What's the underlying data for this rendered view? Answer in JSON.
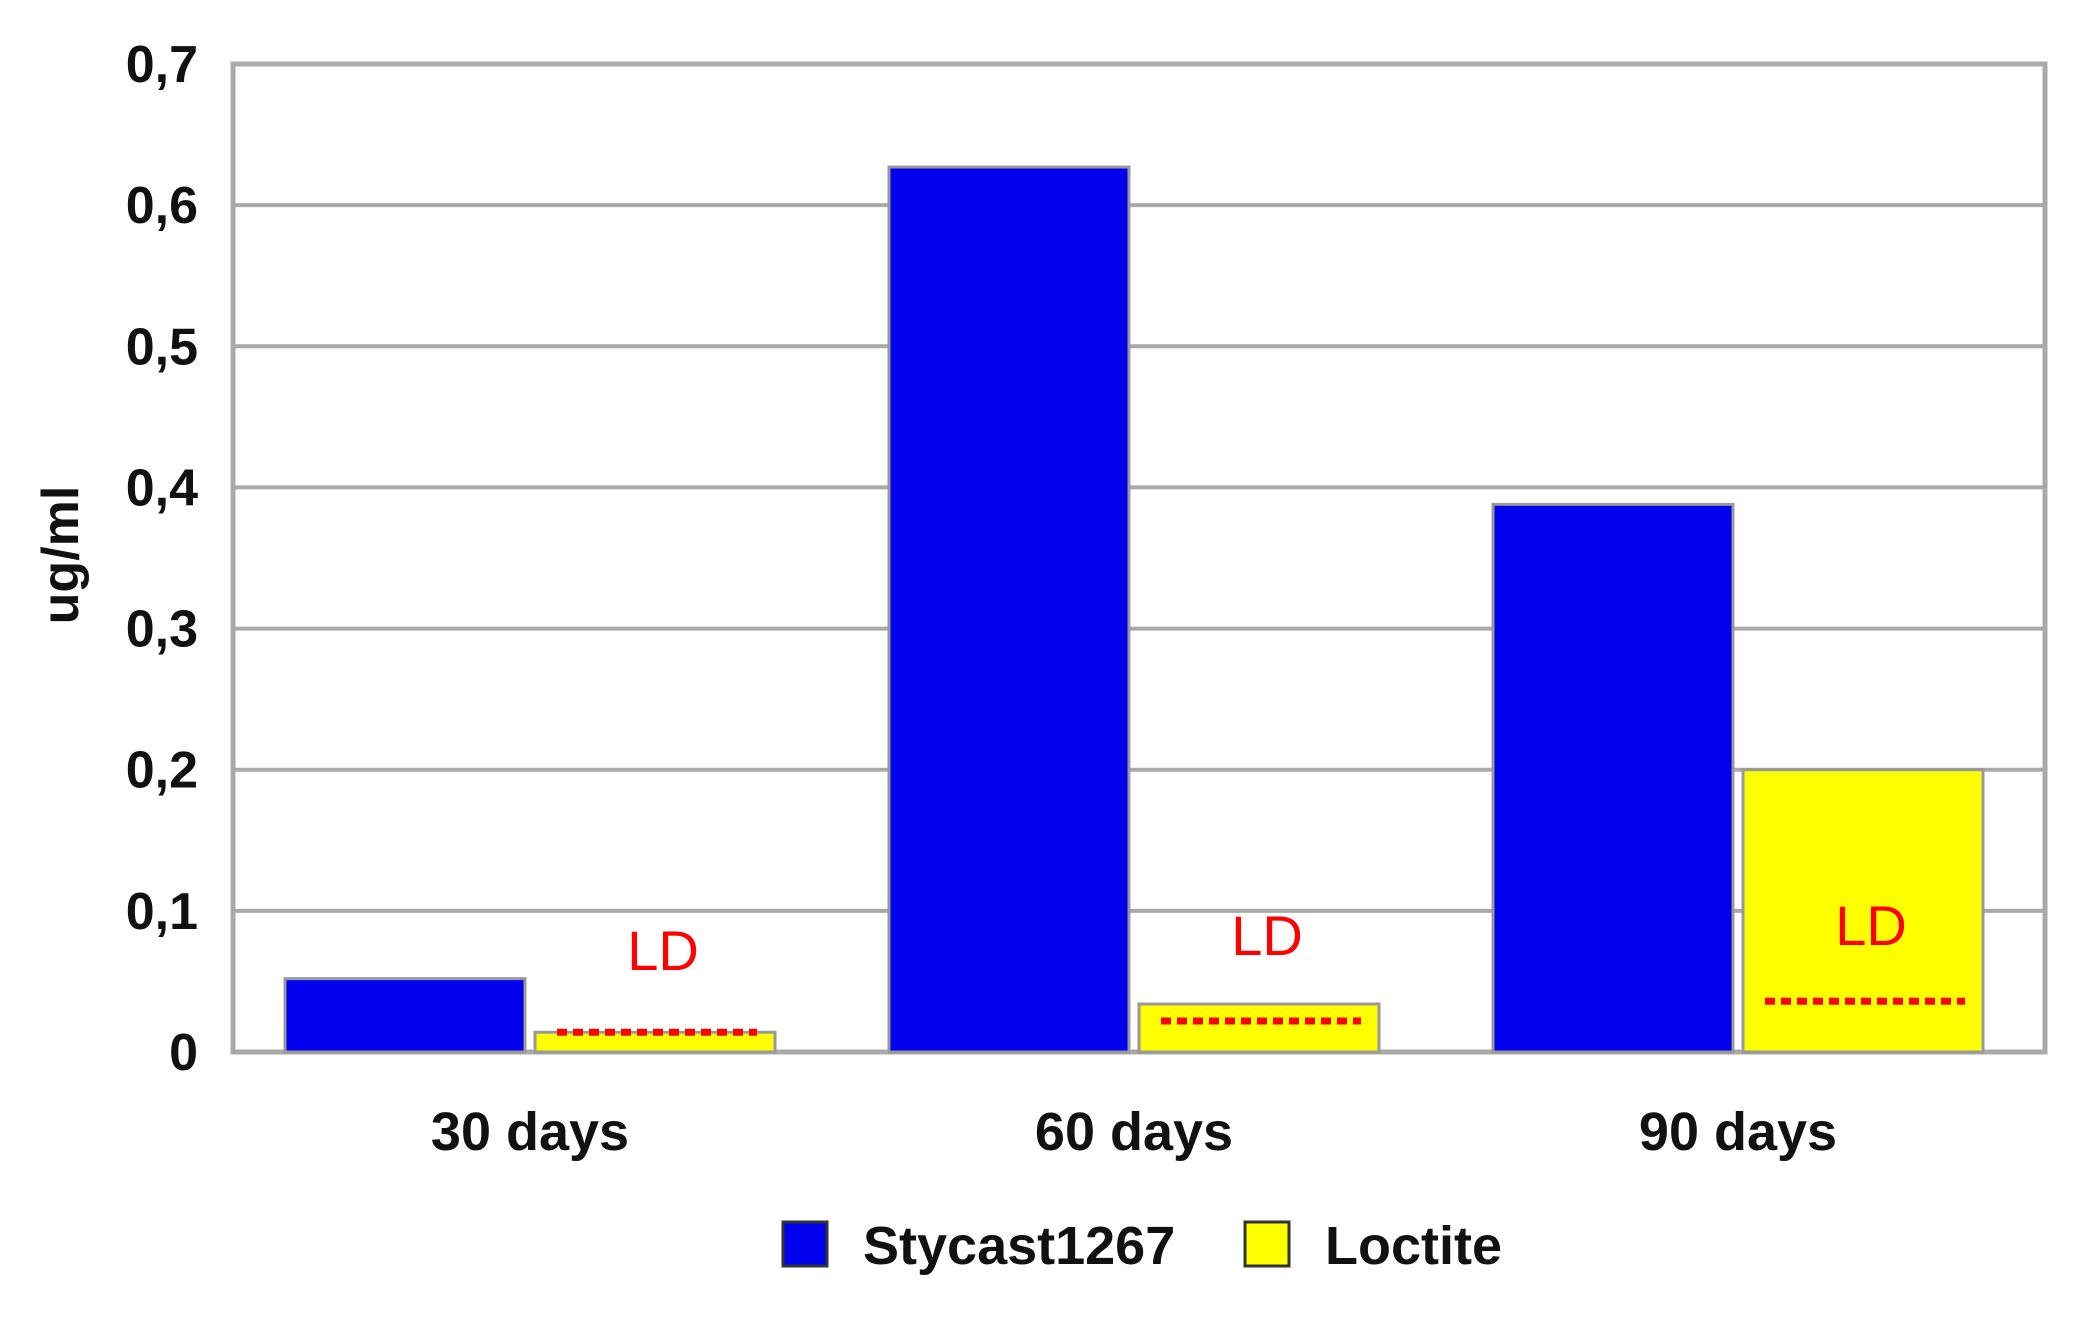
{
  "chart_data": {
    "type": "bar",
    "title": "",
    "xlabel": "",
    "ylabel": "ug/ml",
    "ylim": [
      0,
      0.7
    ],
    "yticks": [
      "0",
      "0,1",
      "0,2",
      "0,3",
      "0,4",
      "0,5",
      "0,6",
      "0,7"
    ],
    "ytick_values": [
      0,
      0.1,
      0.2,
      0.3,
      0.4,
      0.5,
      0.6,
      0.7
    ],
    "grid": true,
    "legend_position": "bottom",
    "categories": [
      "30 days",
      "60 days",
      "90 days"
    ],
    "series": [
      {
        "name": "Stycast1267",
        "color": "#0000ee",
        "values": [
          0.052,
          0.627,
          0.388
        ]
      },
      {
        "name": "Loctite",
        "color": "#ffff00",
        "values": [
          0.014,
          0.034,
          0.2
        ]
      }
    ],
    "detection_limit": {
      "label": "LD",
      "color": "#ff0000",
      "values": [
        0.014,
        0.022,
        0.036
      ]
    }
  }
}
